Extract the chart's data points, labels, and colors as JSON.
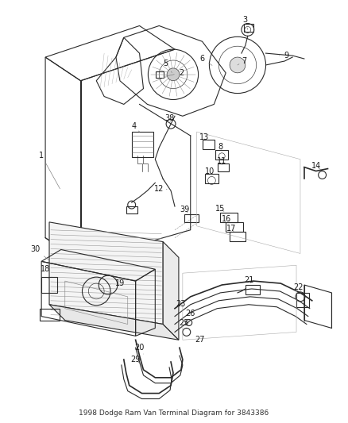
{
  "title": "1998 Dodge Ram Van Terminal Diagram for 3843386",
  "title_fontsize": 6.5,
  "background_color": "#ffffff",
  "line_color": "#2a2a2a",
  "label_color": "#1a1a1a",
  "label_fontsize": 7.0,
  "fig_w": 4.38,
  "fig_h": 5.33,
  "dpi": 100,
  "lw": 0.8,
  "lw_thin": 0.45,
  "lw_thick": 1.2
}
